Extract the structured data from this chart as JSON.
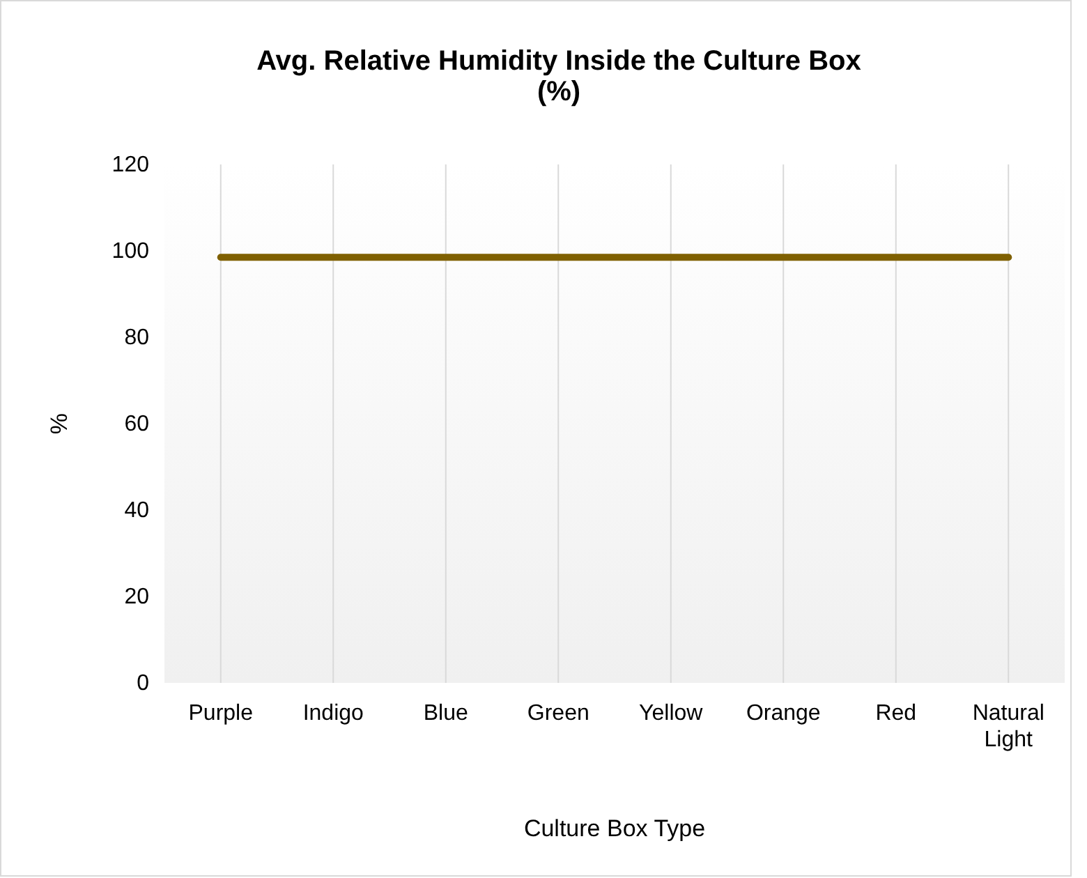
{
  "chart_data": {
    "type": "line",
    "title": "Avg. Relative Humidity Inside the Culture Box (%)",
    "xlabel": "Culture Box Type",
    "ylabel": "%",
    "categories": [
      "Purple",
      "Indigo",
      "Blue",
      "Green",
      "Yellow",
      "Orange",
      "Red",
      "Natural Light"
    ],
    "series": [
      {
        "color": "#7f6000",
        "values": [
          98.5,
          98.5,
          98.5,
          98.5,
          98.5,
          98.5,
          98.5,
          98.5
        ]
      }
    ],
    "ylim": [
      0,
      120
    ],
    "yticks": [
      0,
      20,
      40,
      60,
      80,
      100,
      120
    ],
    "grid": "x",
    "marker": "none",
    "line_style": "solid"
  }
}
